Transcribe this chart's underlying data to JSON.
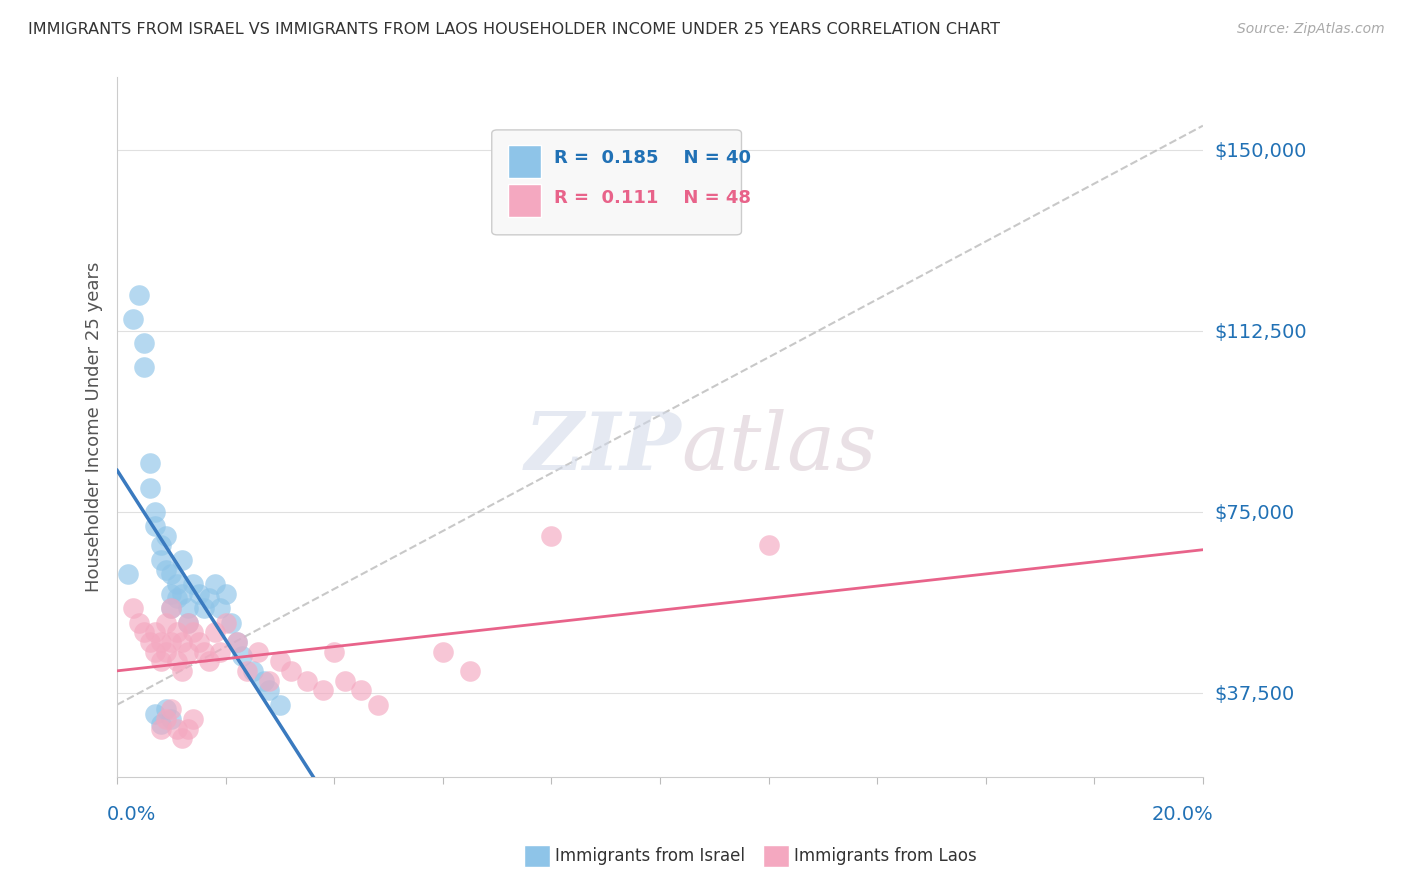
{
  "title": "IMMIGRANTS FROM ISRAEL VS IMMIGRANTS FROM LAOS HOUSEHOLDER INCOME UNDER 25 YEARS CORRELATION CHART",
  "source": "Source: ZipAtlas.com",
  "ylabel": "Householder Income Under 25 years",
  "xlim": [
    0.0,
    0.2
  ],
  "ylim": [
    20000,
    165000
  ],
  "yticks": [
    37500,
    75000,
    112500,
    150000
  ],
  "ytick_labels": [
    "$37,500",
    "$75,000",
    "$112,500",
    "$150,000"
  ],
  "israel_color": "#8ec4e8",
  "laos_color": "#f4a8c0",
  "israel_line_color": "#3a7abf",
  "laos_line_color": "#e8638a",
  "R_israel": 0.185,
  "N_israel": 40,
  "R_laos": 0.111,
  "N_laos": 48,
  "israel_x": [
    0.002,
    0.003,
    0.004,
    0.005,
    0.005,
    0.006,
    0.006,
    0.007,
    0.007,
    0.008,
    0.008,
    0.009,
    0.009,
    0.01,
    0.01,
    0.01,
    0.011,
    0.011,
    0.012,
    0.012,
    0.013,
    0.013,
    0.014,
    0.015,
    0.016,
    0.017,
    0.018,
    0.019,
    0.02,
    0.021,
    0.022,
    0.023,
    0.025,
    0.027,
    0.028,
    0.03,
    0.007,
    0.008,
    0.009,
    0.01
  ],
  "israel_y": [
    62000,
    115000,
    120000,
    110000,
    105000,
    85000,
    80000,
    75000,
    72000,
    68000,
    65000,
    70000,
    63000,
    62000,
    58000,
    55000,
    60000,
    57000,
    65000,
    58000,
    55000,
    52000,
    60000,
    58000,
    55000,
    57000,
    60000,
    55000,
    58000,
    52000,
    48000,
    45000,
    42000,
    40000,
    38000,
    35000,
    33000,
    31000,
    34000,
    32000
  ],
  "laos_x": [
    0.003,
    0.004,
    0.005,
    0.006,
    0.007,
    0.007,
    0.008,
    0.008,
    0.009,
    0.009,
    0.01,
    0.01,
    0.011,
    0.011,
    0.012,
    0.012,
    0.013,
    0.013,
    0.014,
    0.015,
    0.016,
    0.017,
    0.018,
    0.019,
    0.02,
    0.022,
    0.024,
    0.026,
    0.028,
    0.03,
    0.032,
    0.035,
    0.038,
    0.04,
    0.042,
    0.045,
    0.048,
    0.06,
    0.065,
    0.08,
    0.008,
    0.009,
    0.01,
    0.011,
    0.012,
    0.013,
    0.12,
    0.014
  ],
  "laos_y": [
    55000,
    52000,
    50000,
    48000,
    46000,
    50000,
    48000,
    44000,
    52000,
    46000,
    55000,
    48000,
    50000,
    44000,
    48000,
    42000,
    52000,
    46000,
    50000,
    48000,
    46000,
    44000,
    50000,
    46000,
    52000,
    48000,
    42000,
    46000,
    40000,
    44000,
    42000,
    40000,
    38000,
    46000,
    40000,
    38000,
    35000,
    46000,
    42000,
    70000,
    30000,
    32000,
    34000,
    30000,
    28000,
    30000,
    68000,
    32000
  ],
  "background_color": "#ffffff",
  "grid_color": "#e0e0e0"
}
